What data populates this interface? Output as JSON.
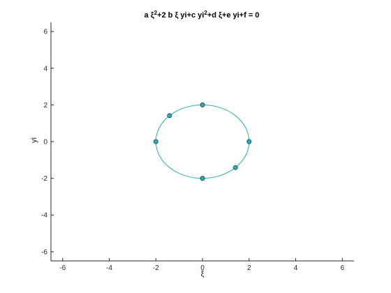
{
  "chart_data": {
    "type": "scatter",
    "title": "a ξ²+2 b ξ yi+c yi²+d ξ+e yi+f = 0",
    "title_parts": {
      "p1": "a ξ",
      "sup1": "2",
      "p2": "+2  b  ξ  yi+c  yi",
      "sup2": "2",
      "p3": "+d  ξ+e  yi+f = 0"
    },
    "xlabel": "ξ",
    "ylabel": "yi",
    "xlim": [
      -6.5,
      6.5
    ],
    "ylim": [
      -6.5,
      6.5
    ],
    "xticks": [
      -6,
      -4,
      -2,
      0,
      2,
      4,
      6
    ],
    "yticks": [
      -6,
      -4,
      -2,
      0,
      2,
      4,
      6
    ],
    "xtick_labels": [
      "-6",
      "-4",
      "-2",
      "0",
      "2",
      "4",
      "6"
    ],
    "ytick_labels": [
      "-6",
      "-4",
      "-2",
      "0",
      "2",
      "4",
      "6"
    ],
    "grid": false,
    "series": [
      {
        "kind": "curve",
        "shape": "ellipse",
        "center": [
          0,
          0
        ],
        "semi_axes": [
          2,
          2
        ],
        "color": "#2ab3a4"
      },
      {
        "kind": "points",
        "marker": "circle",
        "color": "#2ab3a4",
        "edge_color": "#1f4f7f",
        "points": [
          {
            "x": 0,
            "y": 2
          },
          {
            "x": -1.414,
            "y": 1.414
          },
          {
            "x": 2,
            "y": 0
          },
          {
            "x": -2,
            "y": 0
          },
          {
            "x": 1.414,
            "y": -1.414
          },
          {
            "x": 0,
            "y": -2
          }
        ]
      }
    ]
  }
}
